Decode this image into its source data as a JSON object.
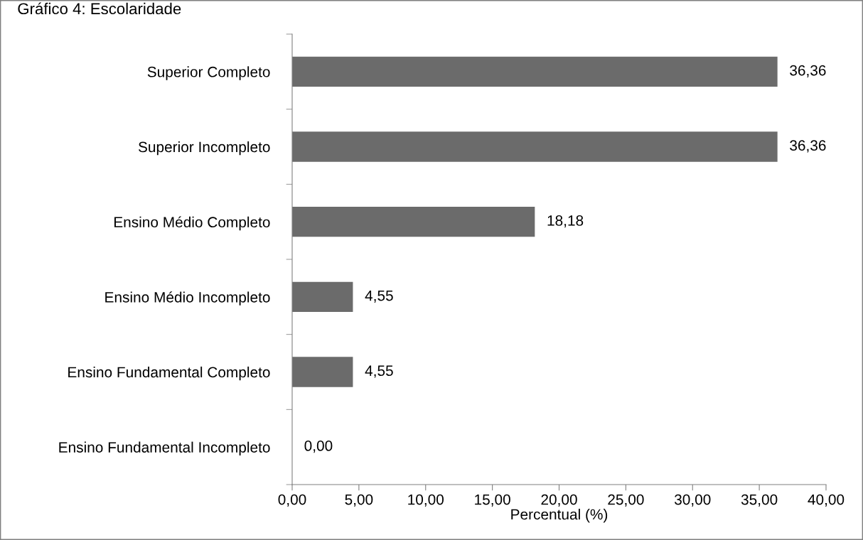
{
  "chart_data": {
    "type": "bar",
    "orientation": "horizontal",
    "title": "Gráfico 4: Escolaridade",
    "xlabel": "Percentual (%)",
    "categories": [
      "Superior Completo",
      "Superior Incompleto",
      "Ensino Médio Completo",
      "Ensino Médio Incompleto",
      "Ensino Fundamental Completo",
      "Ensino Fundamental Incompleto"
    ],
    "values": [
      36.36,
      36.36,
      18.18,
      4.55,
      4.55,
      0.0
    ],
    "value_labels": [
      "36,36",
      "36,36",
      "18,18",
      "4,55",
      "4,55",
      "0,00"
    ],
    "color": "#6b6b6b",
    "xlim": [
      0,
      40
    ],
    "xticks": [
      {
        "value": 0,
        "label": "0,00"
      },
      {
        "value": 5,
        "label": "5,00"
      },
      {
        "value": 10,
        "label": "10,00"
      },
      {
        "value": 15,
        "label": "15,00"
      },
      {
        "value": 20,
        "label": "20,00"
      },
      {
        "value": 25,
        "label": "25,00"
      },
      {
        "value": 30,
        "label": "30,00"
      },
      {
        "value": 35,
        "label": "35,00"
      },
      {
        "value": 40,
        "label": "40,00"
      }
    ],
    "grid": false,
    "legend": false
  }
}
